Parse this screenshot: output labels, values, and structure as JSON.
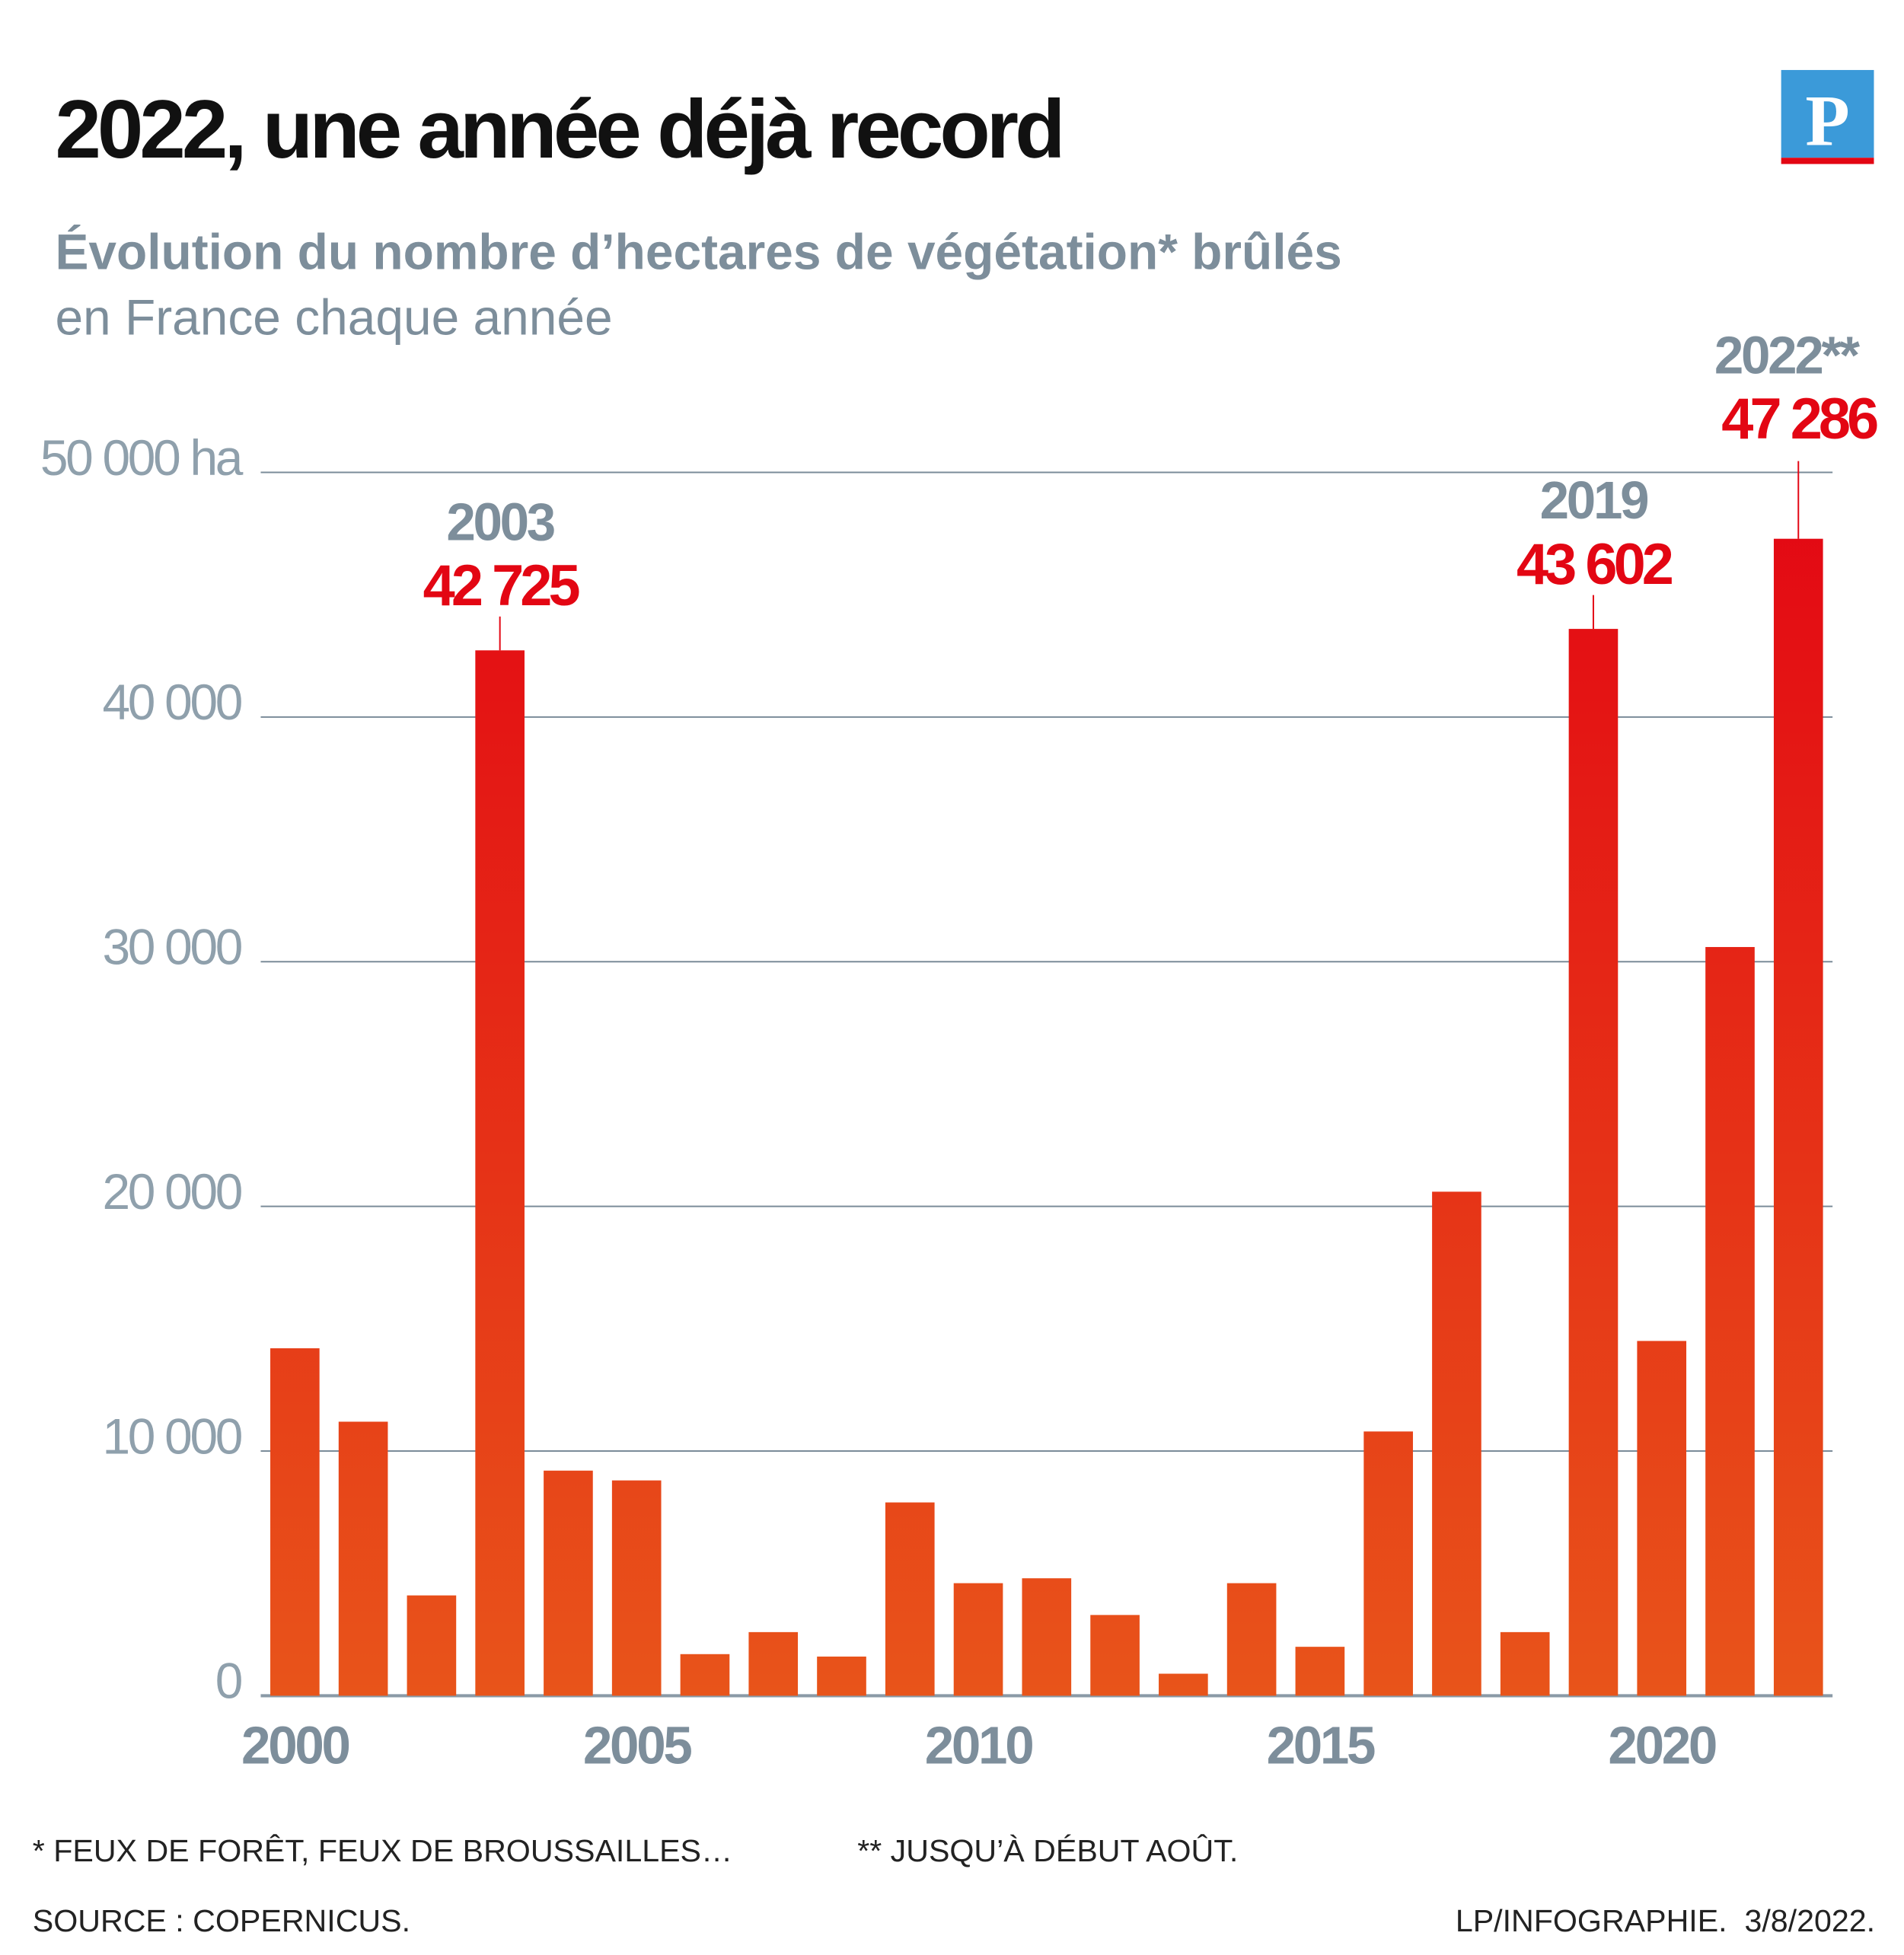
{
  "chart_data": {
    "type": "bar",
    "title": "2022, une année déjà record",
    "subtitle": "Évolution du nombre d’hectares de végétation* brûlés",
    "subtitle2": "en France chaque année",
    "logo": "P",
    "x": [
      2000,
      2001,
      2002,
      2003,
      2004,
      2005,
      2006,
      2007,
      2008,
      2009,
      2010,
      2011,
      2012,
      2013,
      2014,
      2015,
      2016,
      2017,
      2018,
      2019,
      2020,
      2021,
      2022
    ],
    "values": [
      14200,
      11200,
      4100,
      42725,
      9200,
      8800,
      1700,
      2600,
      1600,
      7900,
      4600,
      4800,
      3300,
      900,
      4600,
      2000,
      10800,
      20600,
      2600,
      43602,
      14500,
      30600,
      47286
    ],
    "bar_labels": [
      null,
      null,
      null,
      "2003",
      null,
      null,
      null,
      null,
      null,
      null,
      null,
      null,
      null,
      null,
      null,
      null,
      null,
      null,
      null,
      "2019",
      null,
      null,
      "2022**"
    ],
    "value_labels": [
      null,
      null,
      null,
      "42 725",
      null,
      null,
      null,
      null,
      null,
      null,
      null,
      null,
      null,
      null,
      null,
      null,
      null,
      null,
      null,
      "43 602",
      null,
      null,
      "47 286"
    ],
    "gradient": [
      "#e8541a",
      "#e30613"
    ],
    "xlim": [
      1999.5,
      2022.5
    ],
    "xticks": [
      2000,
      2005,
      2010,
      2015,
      2020
    ],
    "ylim": [
      0,
      50000
    ],
    "yticks": [
      0,
      {
        "value": 10000,
        "label": "10 000"
      },
      {
        "value": 20000,
        "label": "20 000"
      },
      {
        "value": 30000,
        "label": "30 000"
      },
      {
        "value": 40000,
        "label": "40 000"
      },
      {
        "value": 50000,
        "label": "50 000 ha"
      }
    ],
    "grid": true,
    "footnotes": [
      "* FEUX DE FORÊT, FEUX DE BROUSSAILLES…",
      "** JUSQU’À DÉBUT AOÛT."
    ],
    "source": "SOURCE : COPERNICUS.",
    "credit": "LP/INFOGRAPHIE.  3/8/2022."
  }
}
